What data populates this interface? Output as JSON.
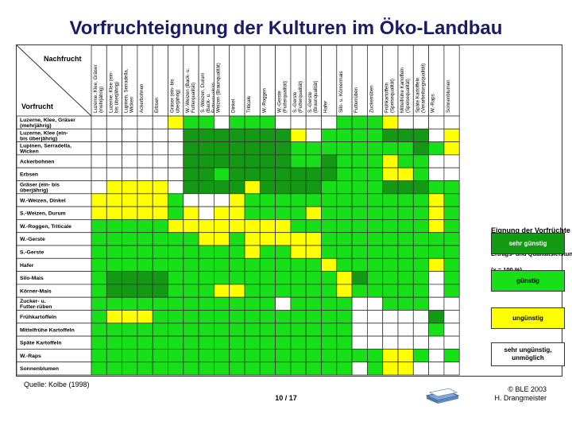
{
  "title": "Vorfruchteignung der Kulturen im Öko-Landbau",
  "source": "Quelle: Kolbe (1998)",
  "page": "10 / 17",
  "copyright": [
    "© BLE 2003",
    "H. Drangmeister"
  ],
  "colors": {
    "sehr_guenstig": "#149914",
    "guenstig": "#18e018",
    "unguenstig": "#ffff00",
    "sehr_unguenstig": "#ffffff"
  },
  "chart_data": {
    "type": "heatmap",
    "corner_nachfrucht": "Nachfrucht",
    "corner_vorfrucht": "Vorfrucht",
    "columns": [
      "Luzerne, Klee, Gräser (mehrjährig)",
      "Luzerne, Klee (ein- bis überjährig)",
      "Lupinen, Serradella, Wicken",
      "Ackerbohnen",
      "Erbsen",
      "Gräser (ein- bis überjährig)",
      "W.-Weizen (Back- u. Futterqualität)",
      "S.-Weizen, Durum (Back- u. Futterqualität)",
      "Weizen (Braunqualität)",
      "Dinkel",
      "Triticale",
      "W.-Roggen",
      "W.-Gerste (Futterqualität)",
      "S.-Gerste (Futterqualität)",
      "S.-Gerste (Braunqualität)",
      "Hafer",
      "Silo- u. Körnermais",
      "Futterrüben",
      "Zuckerrüben",
      "Frühkartoffeln (Speisequalität)",
      "Mittelfrühe Kartoffeln (Speisequalität)",
      "Späte Kartoffeln (Verarbeitungsqualität)",
      "W.-Raps",
      "Sonnenblumen"
    ],
    "rows": [
      "Luzerne, Klee, Gräser (mehrjährig)",
      "Luzerne, Klee (ein- bis überjährig)",
      "Lupinen, Serradella, Wicken",
      "Ackerbohnen",
      "Erbsen",
      "Gräser (ein- bis überjährig)",
      "W.-Weizen, Dinkel",
      "S.-Weizen, Durum",
      "W.-Roggen, Triticale",
      "W.-Gerste",
      "S.-Gerste",
      "Hafer",
      "Silo-Mais",
      "Körner-Mais",
      "Zucker- u. Futter-rüben",
      "Frühkartoffeln",
      "Mittelfrühe Kartoffeln",
      "Späte Kartoffeln",
      "W.-Raps",
      "Sonnenblumen"
    ],
    "scale": {
      "1": "sehr günstig",
      "2": "günstig",
      "3": "ungünstig",
      "4": "sehr ungünstig, unmöglich"
    },
    "values": [
      [
        4,
        4,
        4,
        4,
        4,
        3,
        2,
        2,
        4,
        2,
        2,
        2,
        4,
        4,
        4,
        4,
        2,
        2,
        2,
        3,
        4,
        4,
        4,
        4
      ],
      [
        4,
        4,
        4,
        4,
        4,
        4,
        1,
        1,
        1,
        1,
        1,
        1,
        1,
        3,
        4,
        2,
        2,
        2,
        2,
        1,
        1,
        1,
        4,
        3
      ],
      [
        4,
        4,
        4,
        4,
        4,
        4,
        1,
        1,
        1,
        1,
        1,
        1,
        1,
        2,
        2,
        2,
        2,
        2,
        2,
        2,
        2,
        1,
        2,
        3
      ],
      [
        4,
        4,
        4,
        4,
        4,
        4,
        1,
        1,
        1,
        1,
        1,
        1,
        1,
        2,
        2,
        1,
        2,
        2,
        2,
        3,
        2,
        2,
        4,
        4
      ],
      [
        4,
        4,
        4,
        4,
        4,
        4,
        1,
        1,
        2,
        1,
        1,
        1,
        1,
        1,
        1,
        1,
        2,
        2,
        2,
        3,
        3,
        2,
        4,
        4
      ],
      [
        4,
        3,
        3,
        3,
        3,
        4,
        1,
        1,
        1,
        1,
        3,
        1,
        1,
        1,
        1,
        2,
        2,
        2,
        2,
        1,
        1,
        1,
        2,
        2
      ],
      [
        3,
        3,
        3,
        3,
        3,
        2,
        4,
        4,
        4,
        3,
        2,
        2,
        2,
        2,
        2,
        2,
        2,
        2,
        2,
        2,
        2,
        2,
        3,
        2
      ],
      [
        3,
        3,
        3,
        3,
        3,
        2,
        3,
        4,
        3,
        3,
        2,
        2,
        2,
        2,
        3,
        2,
        2,
        2,
        2,
        2,
        2,
        2,
        3,
        2
      ],
      [
        2,
        2,
        2,
        2,
        2,
        3,
        3,
        3,
        3,
        3,
        3,
        3,
        3,
        2,
        2,
        2,
        2,
        2,
        2,
        2,
        2,
        2,
        3,
        2
      ],
      [
        2,
        2,
        2,
        2,
        2,
        2,
        2,
        3,
        3,
        2,
        3,
        3,
        3,
        3,
        3,
        2,
        2,
        2,
        2,
        2,
        2,
        2,
        2,
        2
      ],
      [
        2,
        2,
        2,
        2,
        2,
        2,
        2,
        2,
        2,
        2,
        3,
        2,
        2,
        3,
        3,
        2,
        2,
        2,
        2,
        2,
        2,
        2,
        2,
        2
      ],
      [
        2,
        2,
        2,
        2,
        2,
        2,
        2,
        2,
        2,
        2,
        2,
        2,
        2,
        2,
        2,
        3,
        2,
        2,
        2,
        2,
        2,
        2,
        3,
        2
      ],
      [
        2,
        1,
        1,
        1,
        1,
        2,
        2,
        2,
        2,
        2,
        2,
        2,
        2,
        2,
        2,
        2,
        3,
        1,
        2,
        2,
        2,
        2,
        4,
        2
      ],
      [
        2,
        1,
        1,
        1,
        1,
        2,
        2,
        2,
        3,
        3,
        2,
        2,
        2,
        2,
        2,
        2,
        3,
        2,
        2,
        2,
        2,
        2,
        4,
        2
      ],
      [
        2,
        2,
        2,
        2,
        2,
        2,
        2,
        2,
        2,
        2,
        2,
        2,
        4,
        2,
        2,
        2,
        2,
        4,
        4,
        2,
        2,
        2,
        4,
        4
      ],
      [
        2,
        3,
        3,
        3,
        2,
        2,
        2,
        2,
        2,
        2,
        2,
        2,
        2,
        2,
        2,
        2,
        2,
        4,
        4,
        4,
        4,
        4,
        1,
        4
      ],
      [
        2,
        2,
        2,
        2,
        2,
        2,
        2,
        2,
        2,
        2,
        2,
        2,
        2,
        2,
        2,
        2,
        2,
        4,
        4,
        4,
        4,
        4,
        2,
        4
      ],
      [
        2,
        2,
        2,
        2,
        2,
        2,
        2,
        2,
        2,
        2,
        2,
        2,
        2,
        2,
        2,
        2,
        2,
        4,
        4,
        4,
        4,
        4,
        4,
        4
      ],
      [
        2,
        2,
        2,
        2,
        2,
        2,
        2,
        2,
        2,
        2,
        2,
        2,
        2,
        2,
        2,
        2,
        2,
        2,
        2,
        3,
        3,
        2,
        4,
        2
      ],
      [
        2,
        2,
        2,
        2,
        2,
        2,
        2,
        2,
        2,
        2,
        2,
        2,
        2,
        2,
        2,
        2,
        2,
        4,
        2,
        3,
        3,
        4,
        4,
        4
      ]
    ]
  },
  "legend": {
    "title": "Eignung der Vorfrüchte für die Nachfrüchte",
    "subtitle": "Ertrags- und Qualitätsleistung",
    "note": "(x = 100 %)",
    "items": [
      {
        "label": "sehr günstig",
        "color": "#149914",
        "text_color": "#ffffff"
      },
      {
        "label": "günstig",
        "color": "#18e018",
        "text_color": "#000000"
      },
      {
        "label": "ungünstig",
        "color": "#ffff00",
        "text_color": "#000000"
      },
      {
        "label": "sehr ungünstig, unmöglich",
        "color": "#ffffff",
        "text_color": "#000000"
      }
    ]
  }
}
